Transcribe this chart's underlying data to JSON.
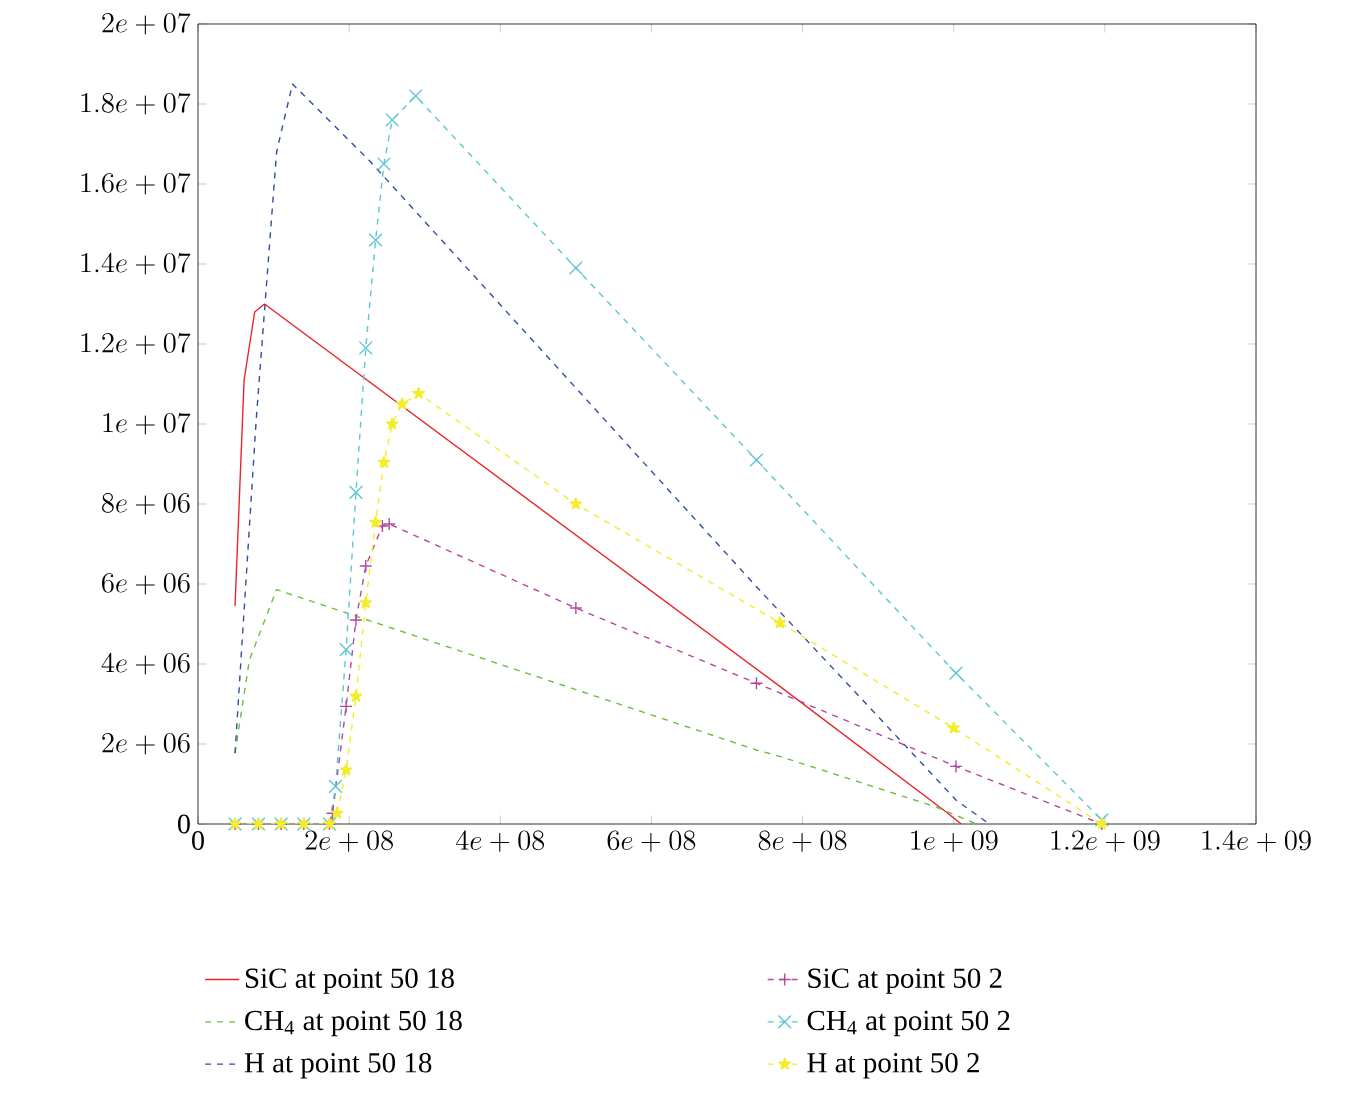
{
  "chart_data": {
    "type": "line",
    "xlim": [
      0,
      1400000000
    ],
    "ylim": [
      0,
      20000000
    ],
    "xticks": [
      0,
      {
        "value": 200000000,
        "label": "2e+08"
      },
      {
        "value": 400000000,
        "label": "4e+08"
      },
      {
        "value": 600000000,
        "label": "6e+08"
      },
      {
        "value": 800000000,
        "label": "8e+08"
      },
      {
        "value": 1000000000,
        "label": "1e+09"
      },
      {
        "value": 1200000000,
        "label": "1.2e+09"
      },
      {
        "value": 1400000000,
        "label": "1.4e+09"
      }
    ],
    "yticks": [
      0,
      {
        "value": 2000000,
        "label": "2e+06"
      },
      {
        "value": 4000000,
        "label": "4e+06"
      },
      {
        "value": 6000000,
        "label": "6e+06"
      },
      {
        "value": 8000000,
        "label": "8e+06"
      },
      {
        "value": 10000000,
        "label": "1e+07"
      },
      {
        "value": 12000000,
        "label": "1.2e+07"
      },
      {
        "value": 14000000,
        "label": "1.4e+07"
      },
      {
        "value": 16000000,
        "label": "1.6e+07"
      },
      {
        "value": 18000000,
        "label": "1.8e+07"
      },
      {
        "value": 20000000,
        "label": "2e+07"
      }
    ],
    "grid": false,
    "legend": "bottom",
    "series": [
      {
        "name": "SiC at point 50 18",
        "color": "#e8262a",
        "line_style": "solid",
        "marker": "none",
        "x": [
          49000000,
          61000000,
          75000000,
          88000000,
          770000000,
          990000000,
          1010000000
        ],
        "values": [
          5450000,
          11100000,
          12800000,
          13000000,
          3440000,
          300000,
          0
        ]
      },
      {
        "name": "CH$_{4}$ at point 50 18",
        "color": "#6cbf3c",
        "line_style": "dashed",
        "marker": "none",
        "x": [
          49000000,
          68000000,
          104000000,
          739000000,
          770000000,
          976000000,
          1030000000
        ],
        "values": [
          1770000,
          4100000,
          5860000,
          1850000,
          1690000,
          430000,
          0
        ]
      },
      {
        "name": "H at point 50 18",
        "color": "#334e9e",
        "line_style": "dashed",
        "marker": "none",
        "x": [
          49000000,
          77000000,
          104000000,
          125000000,
          226000000,
          739000000,
          871000000,
          1003000000,
          1047000000
        ],
        "values": [
          1770000,
          10100000,
          16800000,
          18500000,
          16600000,
          5930000,
          3270000,
          600000,
          0
        ]
      },
      {
        "name": "SiC at point 50 2",
        "color": "#b5489e",
        "line_style": "dashed",
        "marker": "plus",
        "x": [
          49000000,
          80000000,
          110000000,
          140000000,
          174000000,
          178000000,
          196000000,
          209000000,
          222000000,
          244000000,
          253000000,
          500000000,
          739000000,
          1003000000,
          1196000000
        ],
        "values": [
          0,
          0,
          0,
          0,
          0,
          270000,
          2940000,
          5100000,
          6450000,
          7450000,
          7500000,
          5400000,
          3520000,
          1440000,
          0
        ]
      },
      {
        "name": "CH$_{4}$ at point 50 2",
        "color": "#5dc6d3",
        "line_style": "dashed",
        "marker": "cross",
        "x": [
          49000000,
          80000000,
          110000000,
          140000000,
          174000000,
          182000000,
          196000000,
          209000000,
          222000000,
          235000000,
          246000000,
          257000000,
          288000000,
          500000000,
          739000000,
          1003000000,
          1196000000
        ],
        "values": [
          0,
          0,
          0,
          0,
          0,
          940000,
          4360000,
          8290000,
          11900000,
          14600000,
          16500000,
          17600000,
          18200000,
          13900000,
          9100000,
          3770000,
          100000
        ]
      },
      {
        "name": "H at point 50 2",
        "color": "#f2ec2a",
        "line_style": "dashed",
        "marker": "star",
        "x": [
          49000000,
          80000000,
          110000000,
          140000000,
          174000000,
          184000000,
          196000000,
          209000000,
          222000000,
          235000000,
          246000000,
          257000000,
          270000000,
          292000000,
          500000000,
          770000000,
          1000000000,
          1196000000
        ],
        "values": [
          0,
          0,
          0,
          0,
          0,
          270000,
          1350000,
          3190000,
          5530000,
          7540000,
          9040000,
          10000000,
          10500000,
          10760000,
          8000000,
          5030000,
          2400000,
          0
        ]
      }
    ]
  }
}
